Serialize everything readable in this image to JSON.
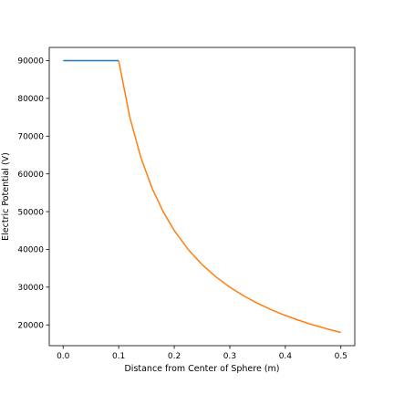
{
  "chart_data": {
    "type": "line",
    "title": "",
    "xlabel": "Distance from Center of Sphere (m)",
    "ylabel": "Electric Potential (V)",
    "xlim": [
      -0.025,
      0.525
    ],
    "ylim": [
      14500,
      93500
    ],
    "x_ticks": [
      0.0,
      0.1,
      0.2,
      0.3,
      0.4,
      0.5
    ],
    "x_tick_labels": [
      "0.0",
      "0.1",
      "0.2",
      "0.3",
      "0.4",
      "0.5"
    ],
    "y_ticks": [
      20000,
      30000,
      40000,
      50000,
      60000,
      70000,
      80000,
      90000
    ],
    "y_tick_labels": [
      "20000",
      "30000",
      "40000",
      "50000",
      "60000",
      "70000",
      "80000",
      "90000"
    ],
    "grid": false,
    "series": [
      {
        "color": "#1f77b4",
        "x": [
          0.0,
          0.1
        ],
        "y": [
          90000,
          90000
        ]
      },
      {
        "color": "#ff7f0e",
        "x": [
          0.1,
          0.12,
          0.14,
          0.16,
          0.18,
          0.2,
          0.225,
          0.25,
          0.275,
          0.3,
          0.325,
          0.35,
          0.375,
          0.4,
          0.425,
          0.45,
          0.475,
          0.5
        ],
        "y": [
          90000,
          75000,
          64286,
          56250,
          50000,
          45000,
          40000,
          36000,
          32727,
          30000,
          27692,
          25714,
          24000,
          22500,
          21176,
          20000,
          18947,
          18000
        ]
      }
    ]
  }
}
